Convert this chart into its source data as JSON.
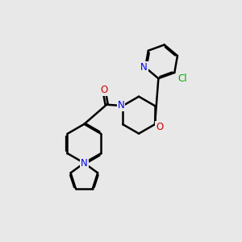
{
  "background_color": "#e8e8e8",
  "bond_color": "#000000",
  "bond_width": 1.8,
  "atom_colors": {
    "N": "#0000ee",
    "O": "#cc0000",
    "Cl": "#00aa00"
  },
  "font_size": 8.5,
  "fig_width": 3.0,
  "fig_height": 3.0,
  "dpi": 100
}
